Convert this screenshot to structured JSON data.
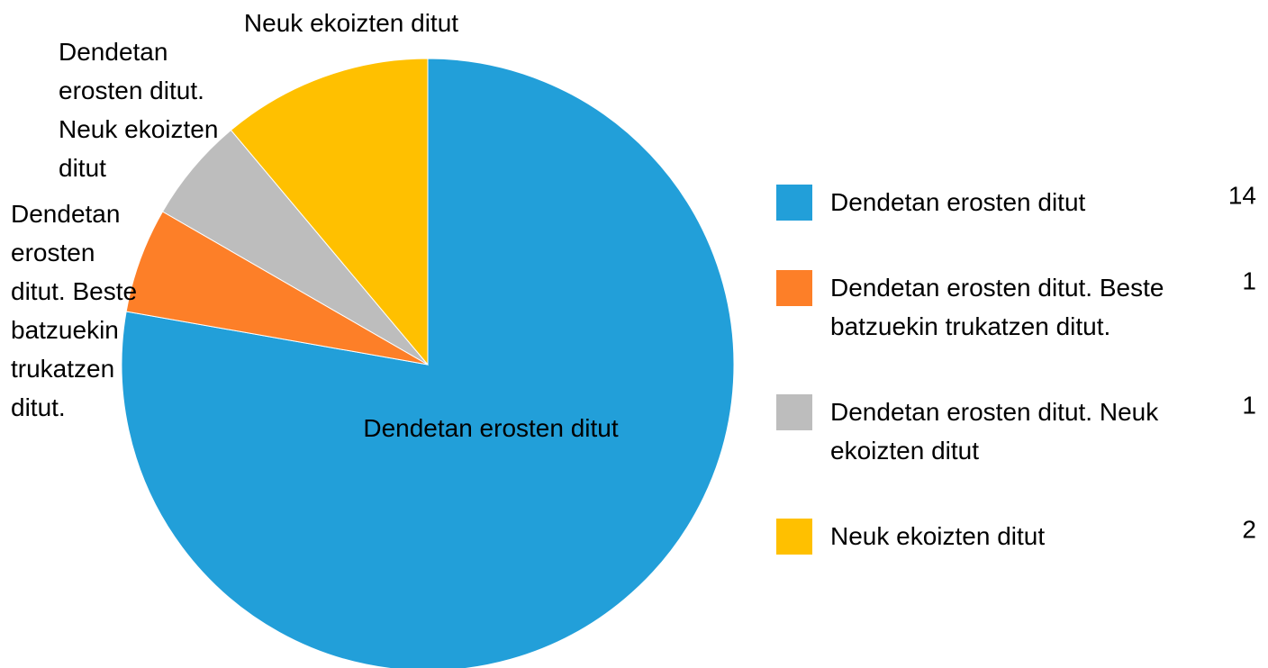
{
  "chart_data": {
    "type": "pie",
    "categories": [
      "Dendetan erosten ditut",
      "Dendetan erosten ditut. Beste batzuekin trukatzen ditut.",
      "Dendetan erosten ditut. Neuk ekoizten ditut",
      "Neuk ekoizten ditut"
    ],
    "values": [
      14,
      1,
      1,
      2
    ],
    "colors": [
      "#229fd9",
      "#fd7f28",
      "#bdbdbd",
      "#ffc000"
    ],
    "legend": "right"
  }
}
